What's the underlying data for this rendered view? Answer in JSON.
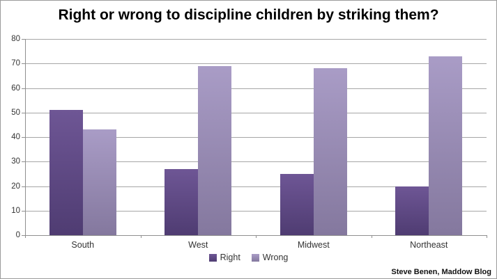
{
  "page": {
    "attribution": "Steve Benen, Maddow Blog"
  },
  "chart_data": {
    "type": "bar",
    "title": "Right or wrong to discipline children by striking them?",
    "categories": [
      "South",
      "West",
      "Midwest",
      "Northeast"
    ],
    "series": [
      {
        "name": "Right",
        "values": [
          51,
          27,
          25,
          20
        ],
        "color_top": "#6e5695",
        "color_bottom": "#4f3c72"
      },
      {
        "name": "Wrong",
        "values": [
          43,
          69,
          68,
          73
        ],
        "color_top": "#a99cc6",
        "color_bottom": "#84789e"
      }
    ],
    "xlabel": "",
    "ylabel": "",
    "ylim": [
      0,
      80
    ],
    "ytick_step": 10,
    "grid": true,
    "legend_position": "bottom"
  }
}
